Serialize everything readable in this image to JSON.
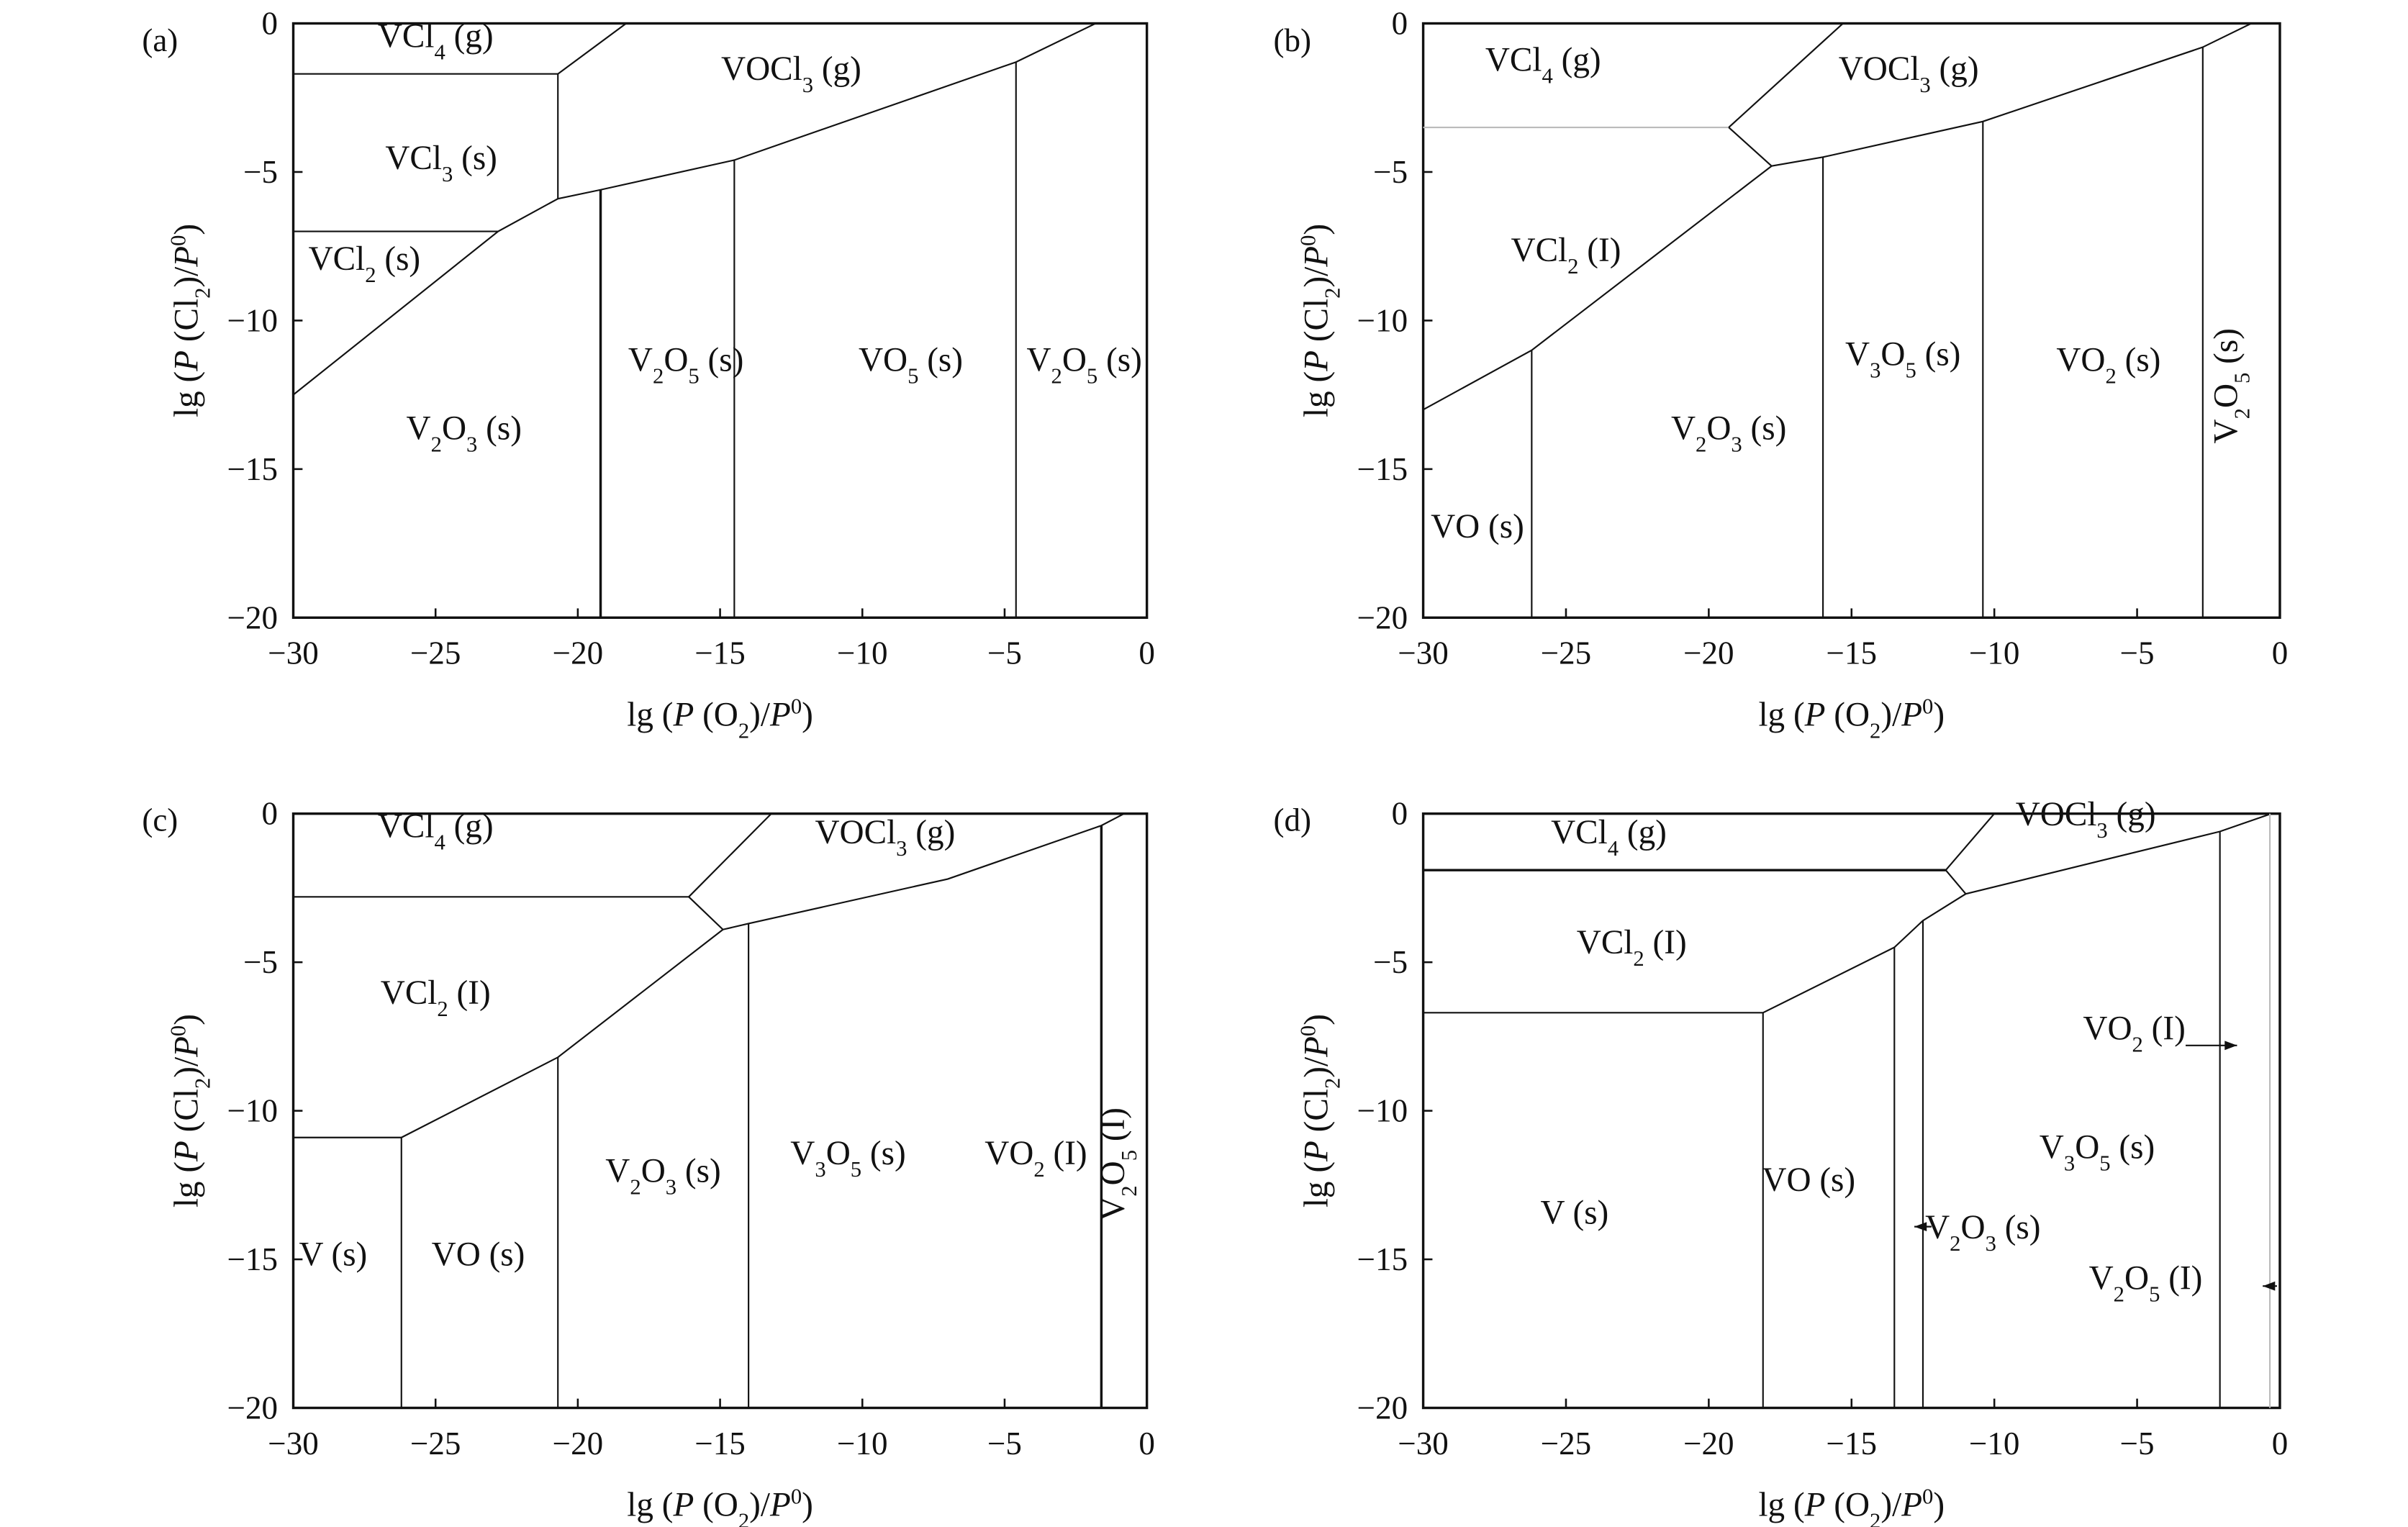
{
  "chart_data": [
    {
      "panel": "(a)",
      "type": "line",
      "xlabel": "lg (P (O2)/P0)",
      "ylabel": "lg (P (Cl2)/P0)",
      "xlim": [
        -30,
        0
      ],
      "ylim": [
        -20,
        0
      ],
      "xticks": [
        -30,
        -25,
        -20,
        -15,
        -10,
        -5,
        0
      ],
      "yticks": [
        0,
        -5,
        -10,
        -15,
        -20
      ],
      "boundaries": [
        {
          "points": [
            [
              -30,
              -1.7
            ],
            [
              -20.7,
              -1.7
            ]
          ]
        },
        {
          "points": [
            [
              -20.7,
              -1.7
            ],
            [
              -18.3,
              0
            ]
          ]
        },
        {
          "points": [
            [
              -20.7,
              -1.7
            ],
            [
              -20.7,
              -5.9
            ]
          ]
        },
        {
          "points": [
            [
              -30,
              -7
            ],
            [
              -22.8,
              -7
            ]
          ]
        },
        {
          "points": [
            [
              -30,
              -12.5
            ],
            [
              -22.8,
              -7
            ],
            [
              -20.7,
              -5.9
            ]
          ]
        },
        {
          "points": [
            [
              -20.7,
              -5.9
            ],
            [
              -19.2,
              -5.6
            ],
            [
              -14.5,
              -4.6
            ],
            [
              -4.6,
              -1.3
            ],
            [
              -1.8,
              0
            ]
          ]
        },
        {
          "points": [
            [
              -19.2,
              -5.6
            ],
            [
              -19.2,
              -20
            ]
          ],
          "bold": true
        },
        {
          "points": [
            [
              -14.5,
              -4.6
            ],
            [
              -14.5,
              -20
            ]
          ]
        },
        {
          "points": [
            [
              -4.6,
              -1.3
            ],
            [
              -4.6,
              -20
            ]
          ]
        }
      ],
      "regions": [
        {
          "label": "VCl4 (g)",
          "at": [
            -25,
            -0.8
          ]
        },
        {
          "label": "VOCl3 (g)",
          "at": [
            -12.5,
            -1.9
          ]
        },
        {
          "label": "VCl3 (s)",
          "at": [
            -24.8,
            -4.9
          ]
        },
        {
          "label": "VCl2 (s)",
          "at": [
            -27.5,
            -8.3
          ]
        },
        {
          "label": "V2O3 (s)",
          "at": [
            -24,
            -14
          ]
        },
        {
          "label": "V2O5 (s)",
          "at": [
            -16.2,
            -11.7
          ]
        },
        {
          "label": "VO5 (s)",
          "at": [
            -8.3,
            -11.7
          ]
        },
        {
          "label": "V2O5 (s)",
          "at": [
            -2.2,
            -11.7
          ]
        }
      ]
    },
    {
      "panel": "(b)",
      "type": "line",
      "xlabel": "lg (P (O2)/P0)",
      "ylabel": "lg (P (Cl2)/P0)",
      "xlim": [
        -30,
        0
      ],
      "ylim": [
        -20,
        0
      ],
      "xticks": [
        -30,
        -25,
        -20,
        -15,
        -10,
        -5,
        0
      ],
      "yticks": [
        0,
        -5,
        -10,
        -15,
        -20
      ],
      "boundaries": [
        {
          "points": [
            [
              -30,
              -3.5
            ],
            [
              -19.3,
              -3.5
            ]
          ],
          "faint": true
        },
        {
          "points": [
            [
              -19.3,
              -3.5
            ],
            [
              -15.3,
              0
            ]
          ]
        },
        {
          "points": [
            [
              -19.3,
              -3.5
            ],
            [
              -17.8,
              -4.8
            ]
          ]
        },
        {
          "points": [
            [
              -30,
              -13
            ],
            [
              -26.2,
              -11
            ],
            [
              -17.8,
              -4.8
            ]
          ]
        },
        {
          "points": [
            [
              -17.8,
              -4.8
            ],
            [
              -16,
              -4.5
            ],
            [
              -10.4,
              -3.3
            ],
            [
              -2.7,
              -0.8
            ],
            [
              -1,
              0
            ]
          ]
        },
        {
          "points": [
            [
              -26.2,
              -11
            ],
            [
              -26.2,
              -20
            ]
          ]
        },
        {
          "points": [
            [
              -16,
              -4.5
            ],
            [
              -16,
              -20
            ]
          ]
        },
        {
          "points": [
            [
              -10.4,
              -3.3
            ],
            [
              -10.4,
              -20
            ]
          ]
        },
        {
          "points": [
            [
              -2.7,
              -0.8
            ],
            [
              -2.7,
              -20
            ]
          ]
        }
      ],
      "regions": [
        {
          "label": "VCl4 (g)",
          "at": [
            -25.8,
            -1.6
          ]
        },
        {
          "label": "VOCl3 (g)",
          "at": [
            -13,
            -1.9
          ]
        },
        {
          "label": "VCl2 (I)",
          "at": [
            -25,
            -8
          ]
        },
        {
          "label": "V3O5 (s)",
          "at": [
            -13.2,
            -11.5
          ]
        },
        {
          "label": "VO2 (s)",
          "at": [
            -6,
            -11.7
          ]
        },
        {
          "label": "V2O3 (s)",
          "at": [
            -19.3,
            -14
          ]
        },
        {
          "label": "VO (s)",
          "at": [
            -28.1,
            -17.3
          ]
        },
        {
          "label": "V2O5 (s)",
          "at": [
            -1.5,
            -12.2
          ],
          "rotate": true
        }
      ]
    },
    {
      "panel": "(c)",
      "type": "line",
      "xlabel": "lg (P (O2)/P0)",
      "ylabel": "lg (P (Cl2)/P0)",
      "xlim": [
        -30,
        0
      ],
      "ylim": [
        -20,
        0
      ],
      "xticks": [
        -30,
        -25,
        -20,
        -15,
        -10,
        -5,
        0
      ],
      "yticks": [
        0,
        -5,
        -10,
        -15,
        -20
      ],
      "boundaries": [
        {
          "points": [
            [
              -30,
              -2.8
            ],
            [
              -16.1,
              -2.8
            ]
          ]
        },
        {
          "points": [
            [
              -16.1,
              -2.8
            ],
            [
              -13.2,
              0
            ]
          ]
        },
        {
          "points": [
            [
              -16.1,
              -2.8
            ],
            [
              -14.9,
              -3.9
            ]
          ]
        },
        {
          "points": [
            [
              -30,
              -10.9
            ],
            [
              -26.2,
              -10.9
            ],
            [
              -20.7,
              -8.2
            ],
            [
              -14.9,
              -3.9
            ]
          ]
        },
        {
          "points": [
            [
              -14.9,
              -3.9
            ],
            [
              -14,
              -3.7
            ],
            [
              -7,
              -2.2
            ],
            [
              -1.6,
              -0.4
            ],
            [
              -0.8,
              0
            ]
          ]
        },
        {
          "points": [
            [
              -26.2,
              -10.9
            ],
            [
              -26.2,
              -20
            ]
          ]
        },
        {
          "points": [
            [
              -20.7,
              -8.2
            ],
            [
              -20.7,
              -20
            ]
          ]
        },
        {
          "points": [
            [
              -14,
              -3.7
            ],
            [
              -14,
              -20
            ]
          ]
        },
        {
          "points": [
            [
              -1.6,
              -0.4
            ],
            [
              -1.6,
              -20
            ]
          ],
          "bold": true
        }
      ],
      "regions": [
        {
          "label": "VCl4 (g)",
          "at": [
            -25,
            -0.8
          ]
        },
        {
          "label": "VOCl3 (g)",
          "at": [
            -9.2,
            -1
          ]
        },
        {
          "label": "VCl2 (I)",
          "at": [
            -25,
            -6.4
          ]
        },
        {
          "label": "V2O3 (s)",
          "at": [
            -17,
            -12.4
          ]
        },
        {
          "label": "V3O5 (s)",
          "at": [
            -10.5,
            -11.8
          ]
        },
        {
          "label": "VO2 (I)",
          "at": [
            -3.9,
            -11.8
          ]
        },
        {
          "label": "V2O5 (I)",
          "at": [
            -0.8,
            -11.8
          ],
          "rotate": true
        },
        {
          "label": "V (s)",
          "at": [
            -28.6,
            -15.2
          ]
        },
        {
          "label": "VO (s)",
          "at": [
            -23.5,
            -15.2
          ]
        }
      ]
    },
    {
      "panel": "(d)",
      "type": "line",
      "xlabel": "lg (P (O2)/P0)",
      "ylabel": "lg (P (Cl2)/P0)",
      "xlim": [
        -30,
        0
      ],
      "ylim": [
        -20,
        0
      ],
      "xticks": [
        -30,
        -25,
        -20,
        -15,
        -10,
        -5,
        0
      ],
      "yticks": [
        0,
        -5,
        -10,
        -15,
        -20
      ],
      "boundaries": [
        {
          "points": [
            [
              -30,
              -1.9
            ],
            [
              -11.7,
              -1.9
            ]
          ],
          "bold": true
        },
        {
          "points": [
            [
              -11.7,
              -1.9
            ],
            [
              -10,
              0
            ]
          ]
        },
        {
          "points": [
            [
              -11.7,
              -1.9
            ],
            [
              -11,
              -2.7
            ]
          ]
        },
        {
          "points": [
            [
              -30,
              -6.7
            ],
            [
              -18.1,
              -6.7
            ],
            [
              -13.5,
              -4.5
            ],
            [
              -12.5,
              -3.6
            ],
            [
              -11,
              -2.7
            ]
          ]
        },
        {
          "points": [
            [
              -11,
              -2.7
            ],
            [
              -2.1,
              -0.6
            ],
            [
              -0.3,
              0
            ]
          ]
        },
        {
          "points": [
            [
              -18.1,
              -6.7
            ],
            [
              -18.1,
              -20
            ]
          ]
        },
        {
          "points": [
            [
              -13.5,
              -4.5
            ],
            [
              -13.5,
              -20
            ]
          ]
        },
        {
          "points": [
            [
              -12.5,
              -3.6
            ],
            [
              -12.5,
              -20
            ]
          ]
        },
        {
          "points": [
            [
              -2.1,
              -0.6
            ],
            [
              -2.1,
              -20
            ]
          ]
        },
        {
          "points": [
            [
              -0.35,
              0
            ],
            [
              -0.35,
              -20
            ]
          ],
          "faint": true
        }
      ],
      "arrows": [
        {
          "from": [
            -3.3,
            -7.8
          ],
          "to": [
            -1.5,
            -7.8
          ]
        },
        {
          "from": [
            -12.2,
            -13.9
          ],
          "to": [
            -12.8,
            -13.9
          ]
        },
        {
          "from": [
            -0.1,
            -15.9
          ],
          "to": [
            -0.6,
            -15.9
          ]
        }
      ],
      "regions": [
        {
          "label": "VCl4 (g)",
          "at": [
            -23.5,
            -1
          ]
        },
        {
          "label": "VOCl3 (g)",
          "at": [
            -6.8,
            -0.4
          ]
        },
        {
          "label": "VCl2 (I)",
          "at": [
            -22.7,
            -4.7
          ]
        },
        {
          "label": "VO2 (I)",
          "at": [
            -5.1,
            -7.6
          ]
        },
        {
          "label": "V3O5 (s)",
          "at": [
            -6.4,
            -11.6
          ]
        },
        {
          "label": "VO (s)",
          "at": [
            -16.5,
            -12.7
          ]
        },
        {
          "label": "V (s)",
          "at": [
            -24.7,
            -13.8
          ]
        },
        {
          "label": "V2O3 (s)",
          "at": [
            -10.4,
            -14.3
          ]
        },
        {
          "label": "V2O5 (I)",
          "at": [
            -4.7,
            -16
          ]
        }
      ]
    }
  ]
}
